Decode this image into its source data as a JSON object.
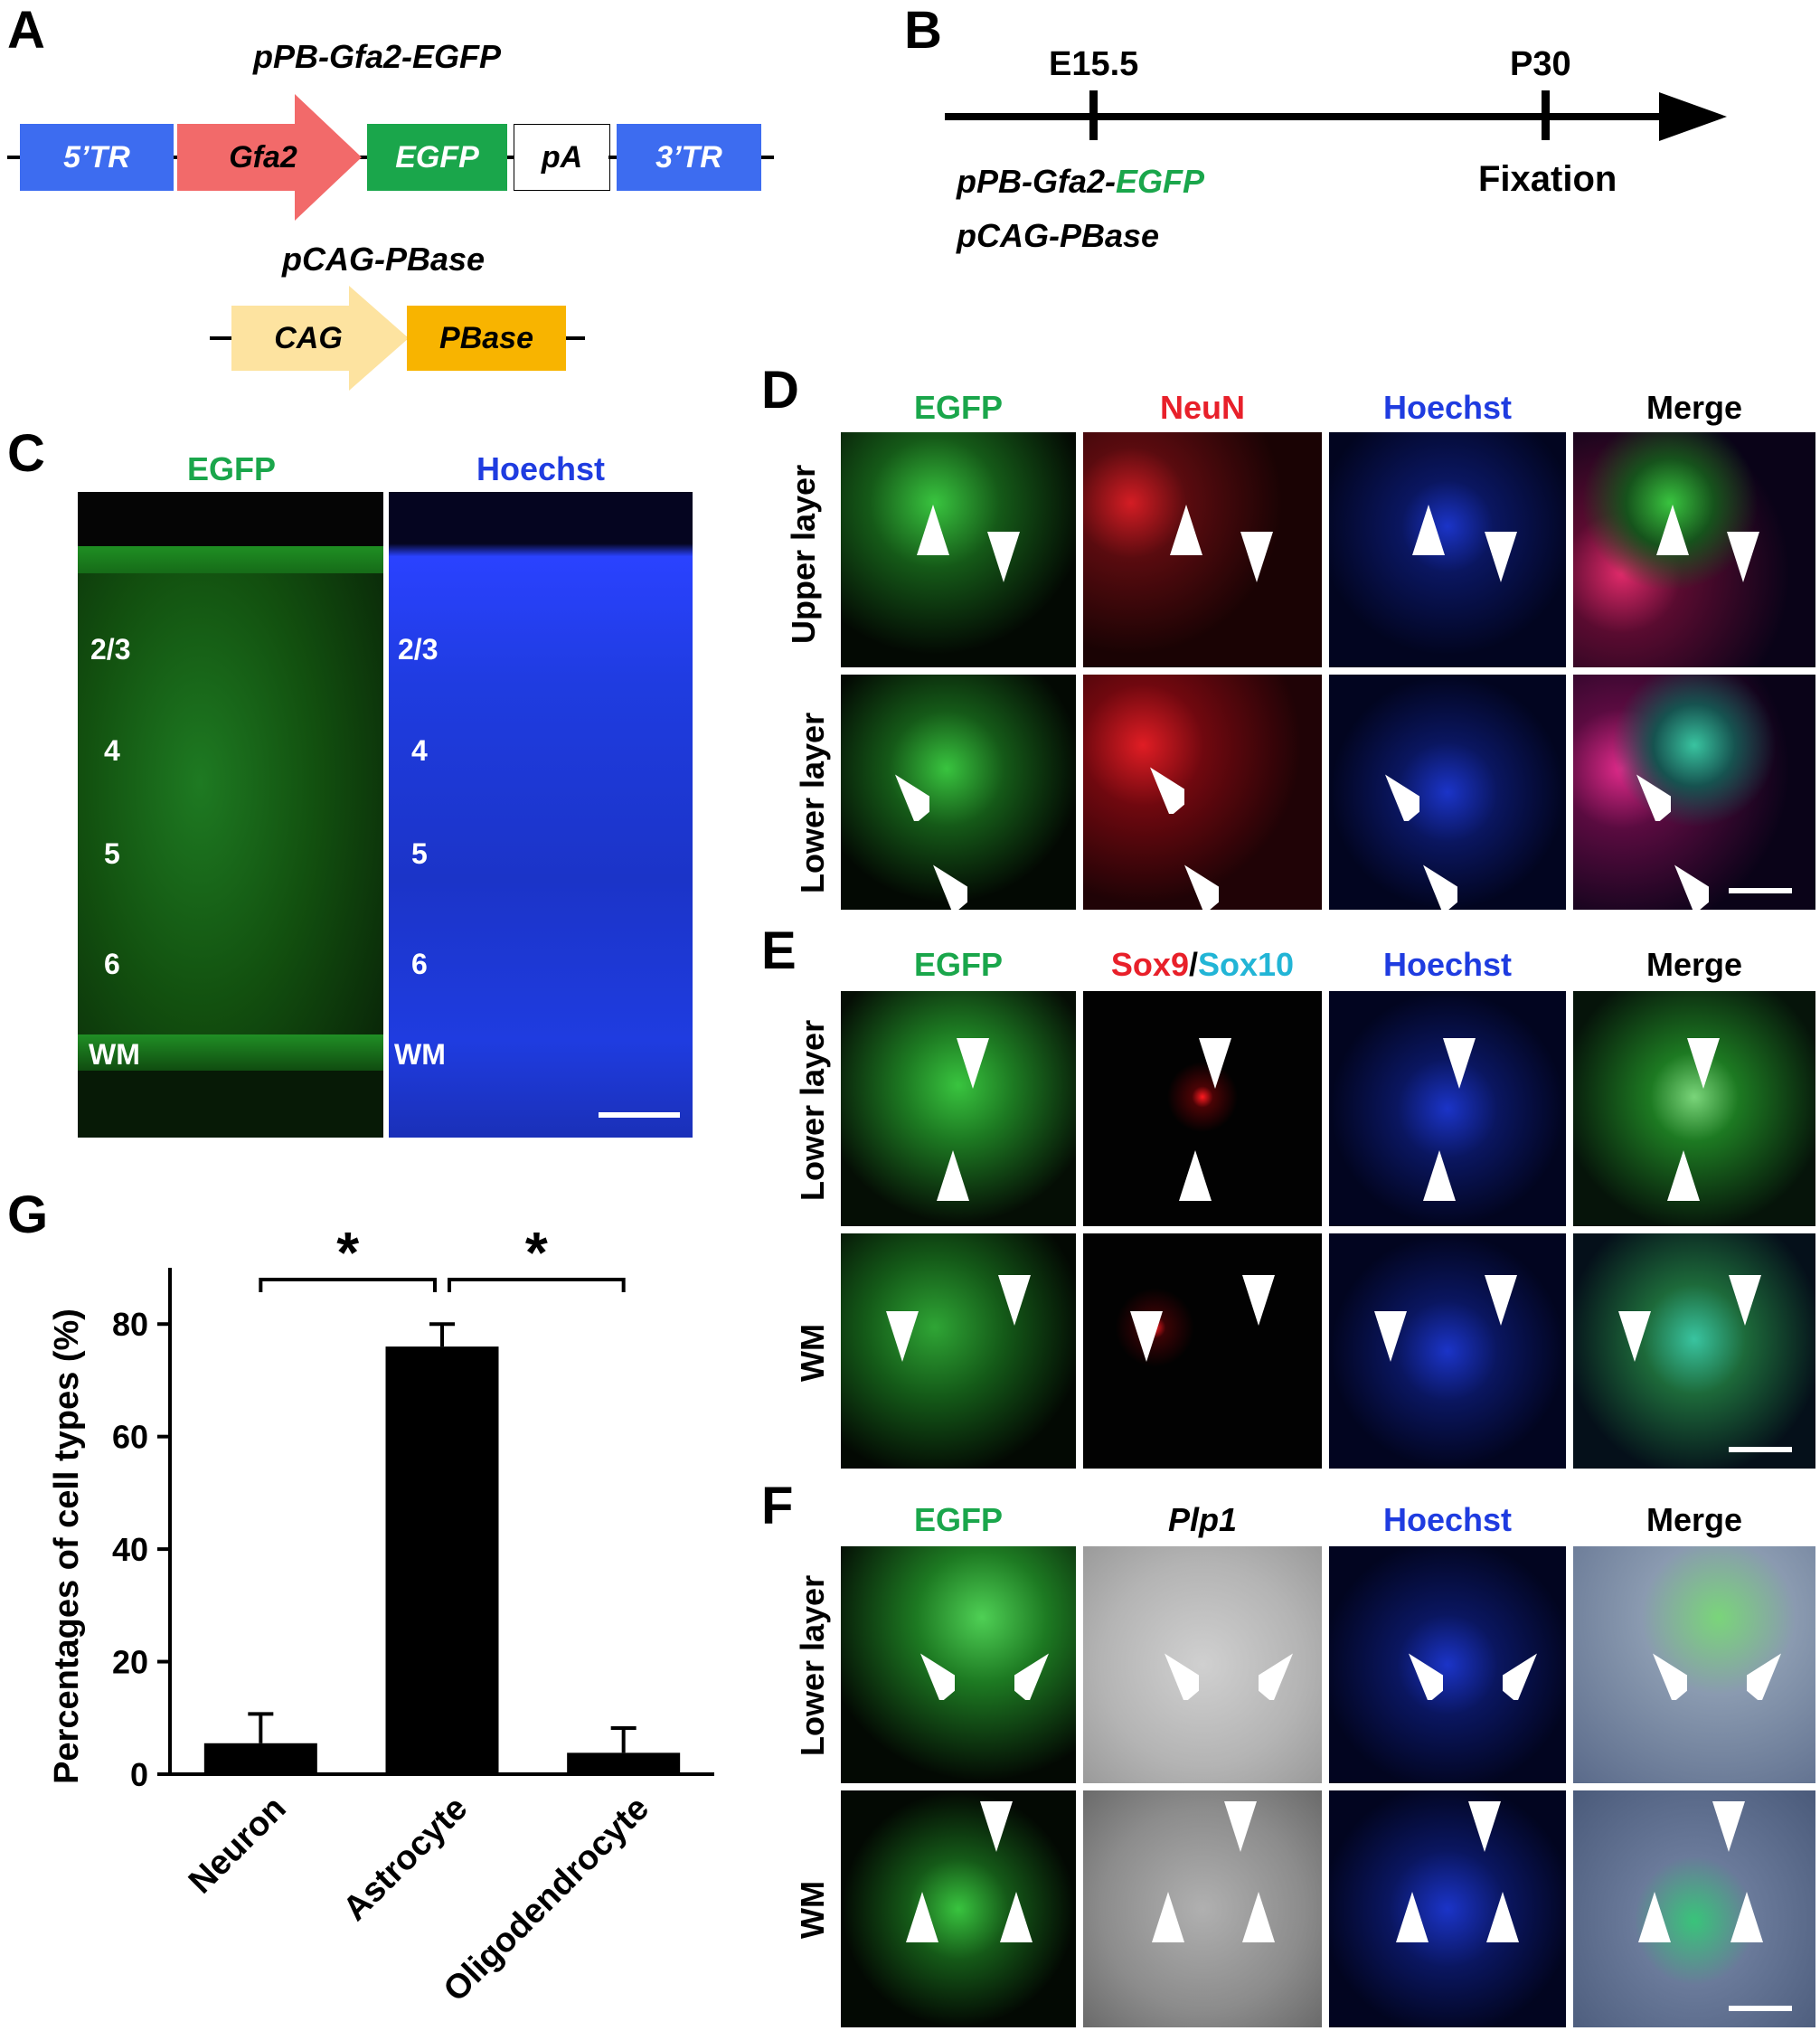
{
  "panels": {
    "A": "A",
    "B": "B",
    "C": "C",
    "D": "D",
    "E": "E",
    "F": "F",
    "G": "G"
  },
  "construct1": {
    "title": "pPB-Gfa2-EGFP",
    "segments": [
      {
        "label": "5’TR",
        "color": "#3d6cf0"
      },
      {
        "label": "Gfa2",
        "color": "#f26a6a"
      },
      {
        "label": "EGFP",
        "color": "#1aa64b"
      },
      {
        "label": "pA",
        "color": "#ffffff"
      },
      {
        "label": "3’TR",
        "color": "#3d6cf0"
      }
    ]
  },
  "construct2": {
    "title": "pCAG-PBase",
    "segments": [
      {
        "label": "CAG",
        "color": "#fde3a0"
      },
      {
        "label": "PBase",
        "color": "#f8b400"
      }
    ]
  },
  "timeline": {
    "start_label": "E15.5",
    "end_label": "P30",
    "end_event": "Fixation",
    "plasmid1_prefix": "pPB-Gfa2-",
    "plasmid1_highlight": "EGFP",
    "plasmid2": "pCAG-PBase"
  },
  "panelC": {
    "headers": [
      "EGFP",
      "Hoechst"
    ],
    "layers": [
      "2/3",
      "4",
      "5",
      "6",
      "WM"
    ]
  },
  "panelD": {
    "headers": [
      "EGFP",
      "NeuN",
      "Hoechst",
      "Merge"
    ],
    "rows": [
      "Upper layer",
      "Lower layer"
    ]
  },
  "panelE": {
    "headers": [
      "EGFP",
      "Sox9",
      "/",
      "Sox10",
      "Hoechst",
      "Merge"
    ],
    "rows": [
      "Lower layer",
      "WM"
    ]
  },
  "panelF": {
    "headers": [
      "EGFP",
      "Plp1",
      "Hoechst",
      "Merge"
    ],
    "rows": [
      "Lower layer",
      "WM"
    ]
  },
  "colors": {
    "egfp": "#1aa64b",
    "neun": "#e8202a",
    "hoechst": "#1f3ce0",
    "sox10": "#22b5d6"
  },
  "chart_data": {
    "type": "bar",
    "categories": [
      "Neuron",
      "Astrocyte",
      "Oligodendrocyte"
    ],
    "values": [
      5.5,
      76,
      3.8
    ],
    "errors": [
      5.2,
      4.0,
      4.4
    ],
    "ylabel": "Percentages of cell types (%)",
    "ylim": [
      0,
      90
    ],
    "yticks": [
      "0",
      "20",
      "40",
      "60",
      "80"
    ],
    "significance": [
      {
        "from": 0,
        "to": 1,
        "label": "*"
      },
      {
        "from": 1,
        "to": 2,
        "label": "*"
      }
    ]
  }
}
